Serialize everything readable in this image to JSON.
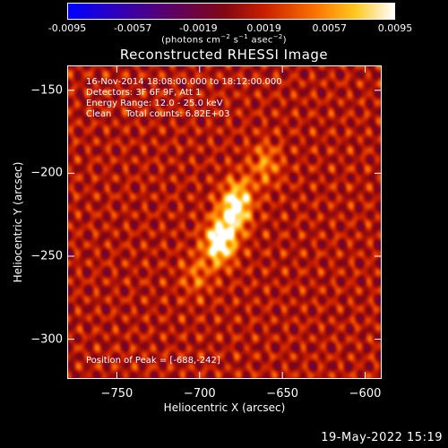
{
  "chart_data": {
    "type": "heatmap",
    "title": "Reconstructed RHESSI Image",
    "xlabel": "Heliocentric X (arcsec)",
    "ylabel": "Heliocentric Y (arcsec)",
    "xlim": [
      -780,
      -590
    ],
    "ylim": [
      -324,
      -135
    ],
    "xticks": [
      -750,
      -700,
      -650,
      -600
    ],
    "yticks": [
      -150,
      -200,
      -250,
      -300
    ],
    "colorbar": {
      "range": [
        -0.0095,
        0.0095
      ],
      "ticks": [
        "-0.0095",
        "-0.0057",
        "-0.0019",
        "0.0019",
        "0.0057",
        "0.0095"
      ],
      "units": "(photons cm⁻² s⁻¹ asec⁻²)"
    },
    "peak": {
      "x": -688,
      "y": -242
    },
    "sources": [
      {
        "x": -688,
        "y": -242,
        "value": 0.0095
      },
      {
        "x": -680,
        "y": -225,
        "value": 0.0065
      },
      {
        "x": -676,
        "y": -214,
        "value": 0.005
      },
      {
        "x": -660,
        "y": -194,
        "value": 0.004
      },
      {
        "x": -702,
        "y": -262,
        "value": 0.003
      }
    ]
  },
  "annotations": {
    "line1": "16-Nov-2014 18:08:00.000 to 18:12:00.000",
    "line2": "Detectors: 3F 6F 9F, Att 1",
    "line3": "Energy Range: 12.0 - 25.0 keV",
    "line4": "Clean     Total counts: 6.82E+03",
    "peak_label": "Position of Peak = [-688,-242]"
  },
  "footer": {
    "date": "19-May-2022 15:19"
  },
  "colors": {
    "background": "#000000",
    "axis": "#ffffff"
  }
}
